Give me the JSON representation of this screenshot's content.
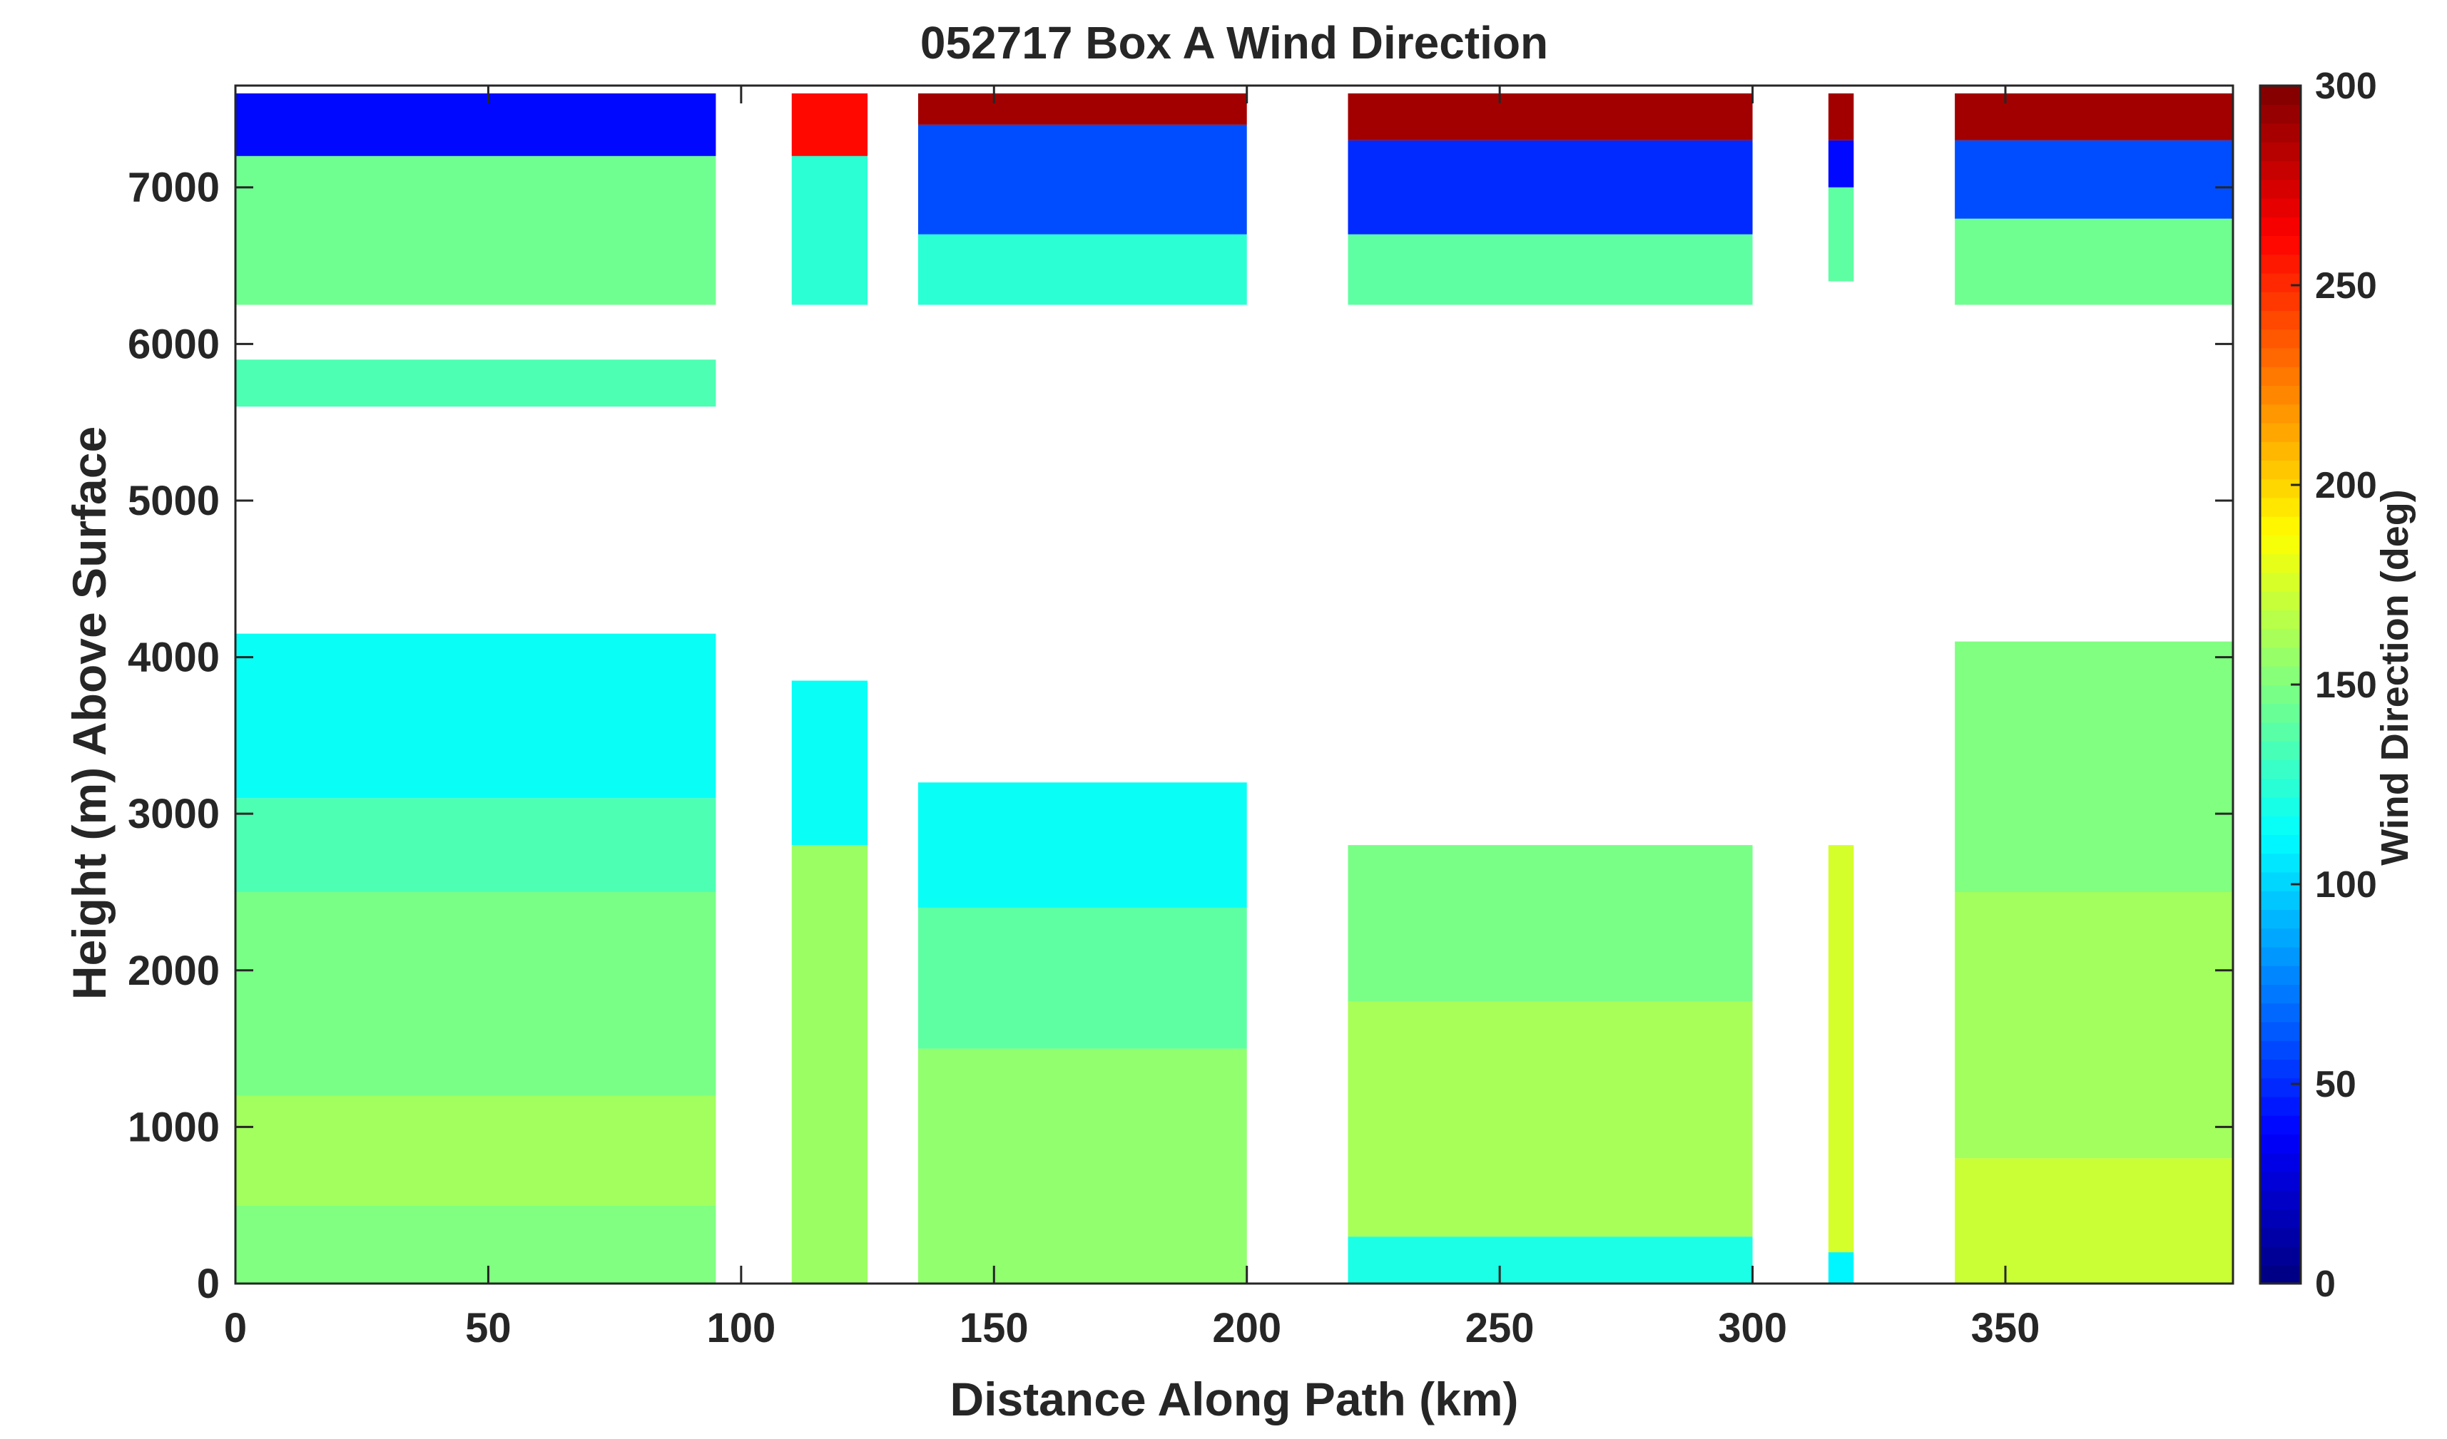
{
  "chart_data": {
    "type": "heatmap",
    "title": "052717 Box A Wind Direction",
    "xlabel": "Distance Along Path (km)",
    "ylabel": "Height (m) Above Surface",
    "colorbar_label": "Wind Direction (deg)",
    "xlim": [
      0,
      395
    ],
    "ylim": [
      0,
      7650
    ],
    "clim": [
      0,
      300
    ],
    "colormap": "jet",
    "x_ticks": [
      0,
      50,
      100,
      150,
      200,
      250,
      300,
      350
    ],
    "y_ticks": [
      0,
      1000,
      2000,
      3000,
      4000,
      5000,
      6000,
      7000
    ],
    "colorbar_ticks": [
      0,
      50,
      100,
      150,
      200,
      250,
      300
    ],
    "x_tick_labels": [
      "0",
      "50",
      "100",
      "150",
      "200",
      "250",
      "300",
      "350"
    ],
    "y_tick_labels": [
      "0",
      "1000",
      "2000",
      "3000",
      "4000",
      "5000",
      "6000",
      "7000"
    ],
    "colorbar_tick_labels": [
      "0",
      "50",
      "100",
      "150",
      "200",
      "250",
      "300"
    ],
    "segments": [
      {
        "x0": 0,
        "x1": 95,
        "layers": [
          {
            "y0": 0,
            "y1": 500,
            "value": 150
          },
          {
            "y0": 500,
            "y1": 1200,
            "value": 160
          },
          {
            "y0": 1200,
            "y1": 2500,
            "value": 148
          },
          {
            "y0": 2500,
            "y1": 3100,
            "value": 135
          },
          {
            "y0": 3100,
            "y1": 4150,
            "value": 115
          },
          {
            "y0": 5600,
            "y1": 5900,
            "value": 135
          },
          {
            "y0": 6250,
            "y1": 7200,
            "value": 145
          },
          {
            "y0": 7200,
            "y1": 7600,
            "value": 40
          }
        ]
      },
      {
        "x0": 110,
        "x1": 125,
        "layers": [
          {
            "y0": 0,
            "y1": 2800,
            "value": 158
          },
          {
            "y0": 2800,
            "y1": 3850,
            "value": 115
          },
          {
            "y0": 6250,
            "y1": 7200,
            "value": 125
          },
          {
            "y0": 7200,
            "y1": 7600,
            "value": 260
          }
        ]
      },
      {
        "x0": 135,
        "x1": 200,
        "layers": [
          {
            "y0": 0,
            "y1": 1500,
            "value": 155
          },
          {
            "y0": 1500,
            "y1": 2400,
            "value": 140
          },
          {
            "y0": 2400,
            "y1": 3200,
            "value": 115
          },
          {
            "y0": 6250,
            "y1": 6700,
            "value": 125
          },
          {
            "y0": 6700,
            "y1": 7400,
            "value": 60
          },
          {
            "y0": 7400,
            "y1": 7600,
            "value": 290
          }
        ]
      },
      {
        "x0": 220,
        "x1": 300,
        "layers": [
          {
            "y0": 0,
            "y1": 300,
            "value": 120
          },
          {
            "y0": 300,
            "y1": 1800,
            "value": 162
          },
          {
            "y0": 1800,
            "y1": 2800,
            "value": 148
          },
          {
            "y0": 6250,
            "y1": 6700,
            "value": 140
          },
          {
            "y0": 6700,
            "y1": 7300,
            "value": 50
          },
          {
            "y0": 7300,
            "y1": 7600,
            "value": 290
          }
        ]
      },
      {
        "x0": 315,
        "x1": 320,
        "layers": [
          {
            "y0": 0,
            "y1": 200,
            "value": 110
          },
          {
            "y0": 200,
            "y1": 2800,
            "value": 175
          },
          {
            "y0": 6400,
            "y1": 7000,
            "value": 140
          },
          {
            "y0": 7000,
            "y1": 7300,
            "value": 40
          },
          {
            "y0": 7300,
            "y1": 7600,
            "value": 290
          }
        ]
      },
      {
        "x0": 340,
        "x1": 395,
        "layers": [
          {
            "y0": 0,
            "y1": 800,
            "value": 172
          },
          {
            "y0": 800,
            "y1": 2500,
            "value": 160
          },
          {
            "y0": 2500,
            "y1": 4100,
            "value": 150
          },
          {
            "y0": 6250,
            "y1": 6800,
            "value": 145
          },
          {
            "y0": 6800,
            "y1": 7300,
            "value": 60
          },
          {
            "y0": 7300,
            "y1": 7600,
            "value": 290
          }
        ]
      }
    ]
  }
}
